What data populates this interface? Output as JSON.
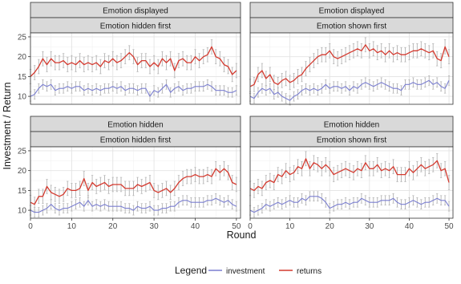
{
  "chart_data": {
    "type": "line",
    "xlabel": "Round",
    "ylabel": "Investment / Return",
    "xlim": [
      0,
      51
    ],
    "ylim": [
      8,
      26
    ],
    "x_ticks": [
      0,
      10,
      20,
      30,
      40,
      50
    ],
    "y_ticks": [
      10,
      15,
      20,
      25
    ],
    "grid": true,
    "legend": {
      "title": "Legend",
      "position": "bottom",
      "entries": [
        {
          "name": "investment",
          "color": "#7b7fd0"
        },
        {
          "name": "returns",
          "color": "#d43a2f"
        }
      ]
    },
    "series_colors": {
      "investment": "#7b7fd0",
      "returns": "#d43a2f",
      "error_bar": "#b5b5b5"
    },
    "panels": [
      {
        "strip_top": "Emotion displayed",
        "strip_bottom": "Emotion hidden first",
        "investment": [
          10,
          10.5,
          12,
          13,
          12.5,
          13,
          11.5,
          12,
          12,
          12.5,
          12,
          12.5,
          12.5,
          11.5,
          12,
          11.5,
          12,
          11.5,
          12,
          12,
          12.5,
          12,
          12.5,
          11.5,
          12,
          12,
          11.5,
          12,
          12,
          10,
          11.5,
          11,
          12,
          13,
          11,
          12,
          12.5,
          11.5,
          12,
          12,
          12.5,
          12.5,
          12.5,
          13,
          12.5,
          11.5,
          11.5,
          11.5,
          11,
          11,
          11.5
        ],
        "returns": [
          15,
          16,
          17.5,
          19.5,
          18,
          19.5,
          18.5,
          18.5,
          19,
          18,
          18.5,
          18,
          19,
          18,
          18.5,
          18,
          18.5,
          17.5,
          19,
          18.5,
          19.5,
          18.5,
          19,
          20,
          21,
          20,
          18,
          19,
          19,
          17.5,
          18.5,
          17.5,
          19.5,
          18.5,
          19.5,
          16.5,
          19,
          19.5,
          18.5,
          18.5,
          20,
          19,
          20,
          20.5,
          22.5,
          20,
          19.5,
          18,
          17.5,
          15.5,
          16.5
        ]
      },
      {
        "strip_top": "Emotion displayed",
        "strip_bottom": "Emotion shown first",
        "investment": [
          10,
          9.5,
          11,
          12,
          11.5,
          12,
          10.5,
          11,
          10,
          9.5,
          9,
          10,
          10.5,
          11.5,
          12,
          11.5,
          12,
          11.5,
          12,
          13,
          12,
          12.5,
          12.5,
          12,
          12.5,
          11.5,
          12.5,
          12,
          13,
          13.5,
          13,
          12.5,
          13,
          13.5,
          13,
          12.5,
          12,
          12,
          11.5,
          13,
          13,
          13.5,
          13,
          13,
          13.5,
          14,
          13,
          13.5,
          12.5,
          12,
          14
        ],
        "returns": [
          12.5,
          13,
          15.5,
          16.5,
          14.5,
          15.5,
          13.5,
          13,
          14,
          14.5,
          13.5,
          14,
          15,
          15.5,
          17,
          18,
          19,
          20,
          20.5,
          20.5,
          21.5,
          20,
          19.5,
          20,
          20.5,
          21,
          21.5,
          22,
          21.5,
          23,
          21.5,
          22,
          21,
          21.5,
          20.5,
          21.5,
          20.5,
          21,
          20.5,
          20.5,
          21,
          21.5,
          21.5,
          22,
          21.5,
          21,
          21.5,
          19.5,
          19,
          22.5,
          20
        ]
      },
      {
        "strip_top": "Emotion hidden",
        "strip_bottom": "Emotion hidden first",
        "investment": [
          10,
          9.5,
          9.5,
          10,
          10.5,
          11.5,
          10.5,
          10,
          10.5,
          10.5,
          11,
          11.5,
          12,
          11,
          12.5,
          11,
          11.5,
          11,
          11.5,
          11,
          11,
          11,
          11,
          10.5,
          10.5,
          10,
          11,
          10.5,
          10.5,
          11,
          10,
          10,
          10.5,
          10.5,
          11,
          11,
          12,
          12.5,
          12.5,
          12,
          12,
          12,
          12,
          12.5,
          12.5,
          13,
          12.5,
          12,
          12.5,
          11.5,
          11
        ],
        "returns": [
          12,
          11.5,
          13.5,
          13.5,
          16,
          14.5,
          14,
          13.5,
          14,
          15.5,
          15,
          15,
          15.5,
          18,
          15,
          17,
          16,
          16.5,
          17,
          16,
          16.5,
          16.5,
          16.5,
          15.5,
          15.5,
          15.5,
          16.5,
          16,
          16.5,
          17,
          15,
          14.5,
          15,
          15.5,
          14.5,
          15.5,
          17,
          18,
          18.5,
          18.5,
          19,
          18.5,
          18.5,
          19,
          18.5,
          20.5,
          19.5,
          20.5,
          19.5,
          17,
          16.5
        ]
      },
      {
        "strip_top": "Emotion hidden",
        "strip_bottom": "Emotion shown first",
        "investment": [
          10,
          9.5,
          10,
          10.5,
          11.5,
          11,
          11.5,
          12,
          11.5,
          12,
          12.5,
          12,
          12,
          13,
          12.5,
          13.5,
          13.5,
          13.5,
          13,
          12,
          10.5,
          11,
          11.5,
          11.5,
          12,
          11.5,
          12,
          12,
          13,
          12.5,
          12,
          12,
          12,
          12.5,
          12.5,
          12.5,
          13,
          12,
          11.5,
          11.5,
          12,
          12.5,
          12,
          11.5,
          12,
          12,
          12.5,
          13,
          12.5,
          12.5,
          11
        ],
        "returns": [
          15.5,
          15,
          16,
          15.5,
          17,
          17.5,
          17,
          19,
          18.5,
          20,
          19,
          19.5,
          21,
          20.5,
          23,
          20.5,
          22,
          21.5,
          20.5,
          21.5,
          20.5,
          19,
          19.5,
          20,
          20.5,
          20,
          19.5,
          20.5,
          20,
          22,
          20.5,
          20.5,
          21.5,
          20,
          20.5,
          20,
          21,
          19,
          19,
          19,
          20.5,
          19.5,
          20.5,
          21.5,
          20.5,
          21,
          21.5,
          22.5,
          20,
          20.5,
          17
        ]
      }
    ]
  }
}
